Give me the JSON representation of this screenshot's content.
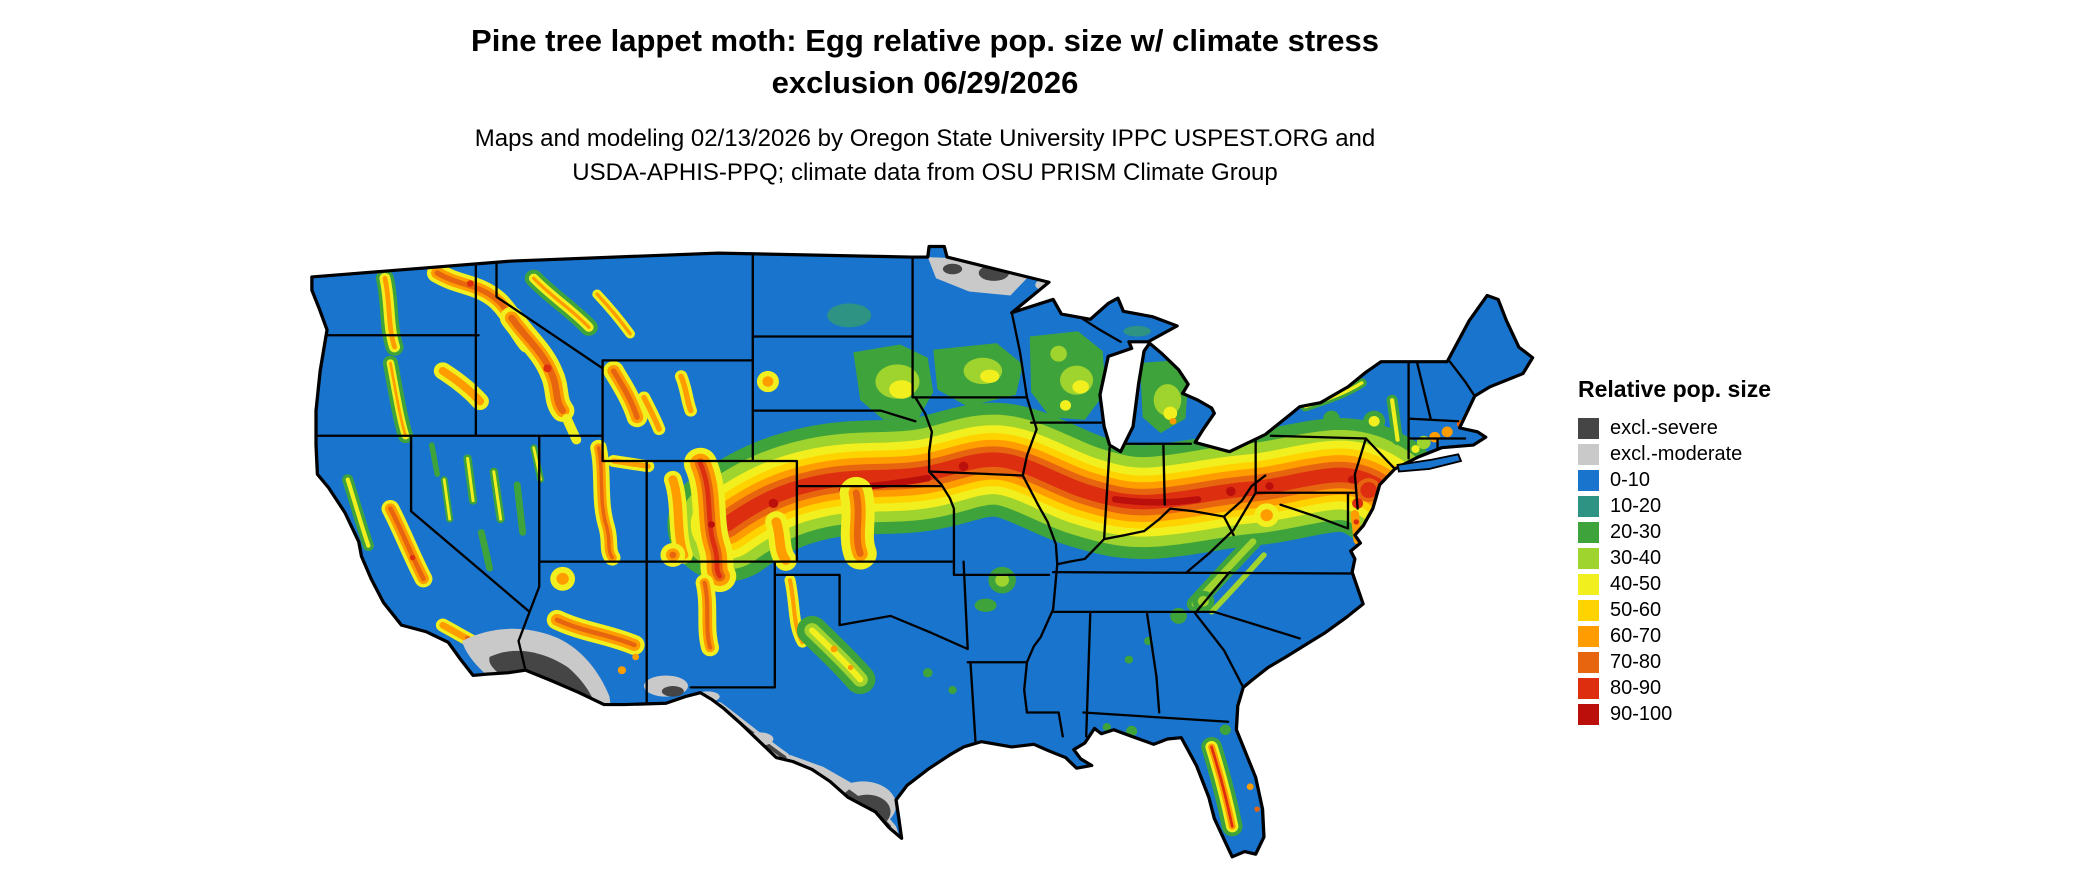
{
  "title": {
    "line1": "Pine tree lappet moth: Egg relative pop. size w/ climate stress",
    "line2": "exclusion 06/29/2026"
  },
  "subtitle": {
    "line1": "Maps and modeling 02/13/2026 by Oregon State University IPPC USPEST.ORG and",
    "line2": "USDA-APHIS-PPQ; climate data from OSU PRISM Climate Group"
  },
  "legend": {
    "title": "Relative pop. size",
    "items": [
      {
        "label": "excl.-severe",
        "color": "#454545"
      },
      {
        "label": "excl.-moderate",
        "color": "#c9c9c9"
      },
      {
        "label": "0-10",
        "color": "#1874cd"
      },
      {
        "label": "10-20",
        "color": "#2e9382"
      },
      {
        "label": "20-30",
        "color": "#3fa33c"
      },
      {
        "label": "30-40",
        "color": "#9fd32e"
      },
      {
        "label": "40-50",
        "color": "#f2ef1f"
      },
      {
        "label": "50-60",
        "color": "#ffd300"
      },
      {
        "label": "60-70",
        "color": "#ff9d00"
      },
      {
        "label": "70-80",
        "color": "#e8650f"
      },
      {
        "label": "80-90",
        "color": "#dd2f10"
      },
      {
        "label": "90-100",
        "color": "#bb0f0c"
      }
    ]
  },
  "map_data": {
    "type": "raster-map",
    "geography": "Continental United States with black state boundaries",
    "depicts": "Modeled egg relative population size for pine tree lappet moth with climate stress exclusion",
    "background_value": "0-10 (blue) over most of the country",
    "high_value_regions": [
      "Central Plains / Corn Belt band from eastern Colorado through Nebraska, Kansas, Iowa, Missouri, Illinois, Indiana and Ohio into Pennsylvania, Maryland and New Jersey (60-100)",
      "Western mountain ranges: Cascades, northern Idaho, western Montana, Colorado Rockies, Wasatch, Sierra Nevada, Mogollon Rim (40-90)",
      "Central Florida ridge and Black Hills (40-80)"
    ],
    "excluded_regions": [
      "Southern Arizona and southeastern California deserts (severe with moderate fringe)",
      "Southern New Mexico and Rio Grande valley (moderate)",
      "South Texas (severe core with moderate fringe)",
      "Northern Minnesota / North Dakota border strip (moderate with severe spots)"
    ]
  }
}
